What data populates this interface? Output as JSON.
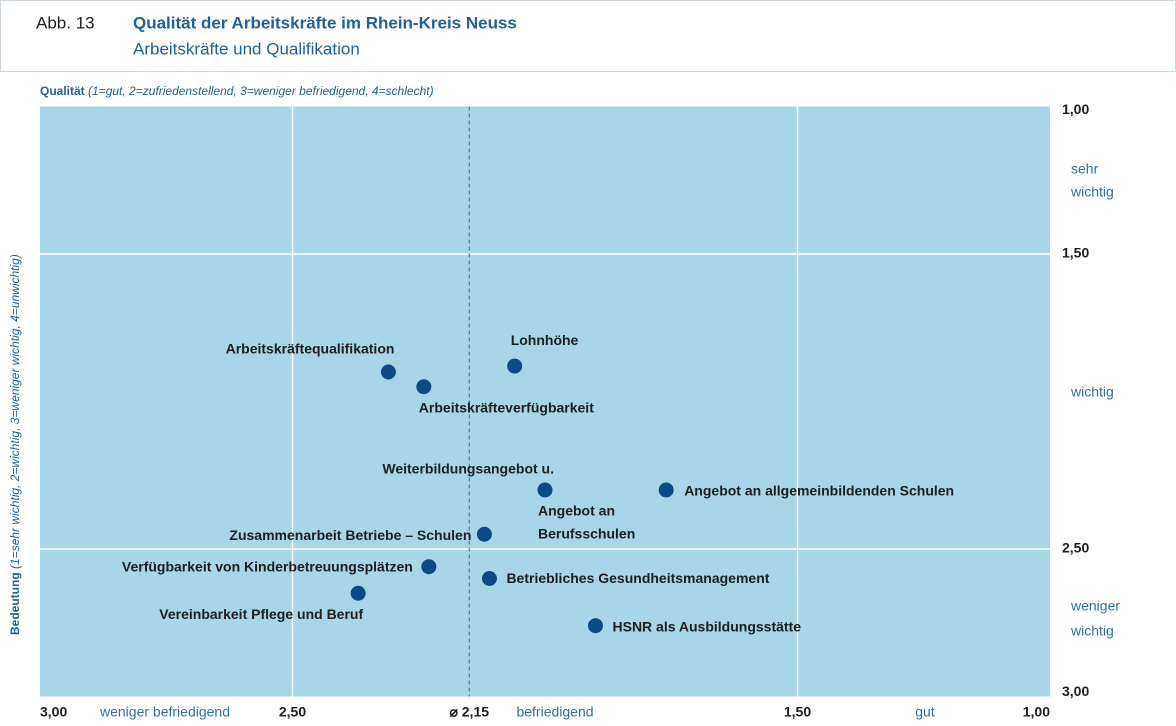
{
  "chart_data": {
    "type": "scatter",
    "figure_label": "Abb. 13",
    "title": "Qualität der Arbeitskräfte im Rhein-Kreis Neuss",
    "subtitle": "Arbeitskräfte und Qualifikation",
    "xlabel": {
      "name": "Qualität",
      "note": "(1=gut, 2=zufriedenstellend, 3=weniger befriedigend, 4=schlecht)"
    },
    "ylabel": {
      "name": "Bedeutung",
      "note": "(1=sehr wichtig, 2=wichtig, 3=weniger wichtig, 4=unwichtig)"
    },
    "x": [
      2.31,
      2.24,
      2.06,
      2.0,
      1.76,
      2.12,
      2.23,
      2.11,
      2.37,
      1.9
    ],
    "values": [
      1.9,
      1.95,
      1.88,
      2.3,
      2.3,
      2.45,
      2.56,
      2.6,
      2.65,
      2.76
    ],
    "labels": [
      [
        "Arbeitskräftequalifikation"
      ],
      [
        "Arbeitskräfteverfügbarkeit"
      ],
      [
        "Lohnhöhe"
      ],
      [
        "Weiterbildungsangebot u.",
        "Angebot an",
        "Berufsschulen"
      ],
      [
        "Angebot an allgemeinbildenden Schulen"
      ],
      [
        "Zusammenarbeit Betriebe – Schulen"
      ],
      [
        "Verfügbarkeit von Kinderbetreuungsplätzen"
      ],
      [
        "Betriebliches Gesundheitsmanagement"
      ],
      [
        "Vereinbarkeit Pflege und Beruf"
      ],
      [
        "HSNR als Ausbildungsstätte"
      ]
    ],
    "color": "#0b4a86",
    "xlim": [
      3,
      1
    ],
    "ylim": [
      3,
      1
    ],
    "xticks": [
      {
        "value": 3,
        "label": "3,00"
      },
      {
        "value": 2.5,
        "label": "2,50"
      },
      {
        "value": 1.5,
        "label": "1,50"
      },
      {
        "value": 1,
        "label": "1,00"
      }
    ],
    "yticks": [
      {
        "value": 1,
        "label": "1,00"
      },
      {
        "value": 1.5,
        "label": "1,50"
      },
      {
        "value": 2.5,
        "label": "2,50"
      },
      {
        "value": 3,
        "label": "3,00"
      }
    ],
    "mean_x": {
      "value": 2.15,
      "label": "⌀ 2,15"
    },
    "x_zones": [
      "weniger befriedigend",
      "befriedigend",
      "gut"
    ],
    "y_zones": [
      [
        "sehr",
        "wichtig"
      ],
      [
        "wichtig"
      ],
      [
        "weniger",
        "wichtig"
      ]
    ],
    "grid": true
  }
}
